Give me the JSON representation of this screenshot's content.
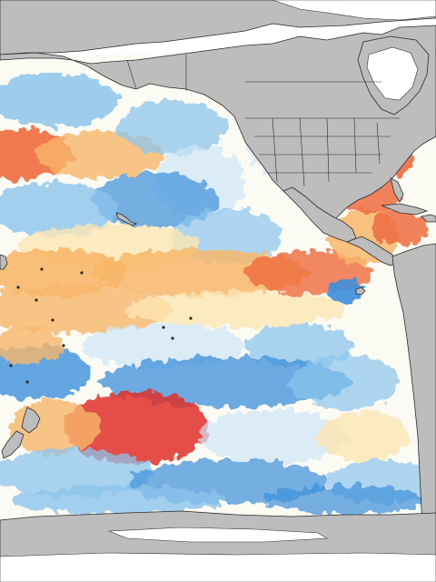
{
  "map": {
    "type": "sea-surface-temperature-anomaly",
    "region": "Pacific Ocean",
    "colors": {
      "land": "#bdbdbd",
      "land_border": "#2b2b2b",
      "ice": "#ffffff",
      "neutral": "#fbfbf3",
      "warm_light": "#fde6b3",
      "warm": "#f8b76b",
      "warm_strong": "#ef6b3f",
      "warm_extreme": "#e0302a",
      "cool_light": "#cfe6f7",
      "cool": "#8cc4ec",
      "cool_strong": "#3c8fdc",
      "cool_extreme": "#1c63c8"
    },
    "features": [
      "north-america",
      "alaska",
      "greenland",
      "central-america",
      "south-america",
      "new-zealand",
      "antarctica",
      "pacific-islands"
    ]
  }
}
